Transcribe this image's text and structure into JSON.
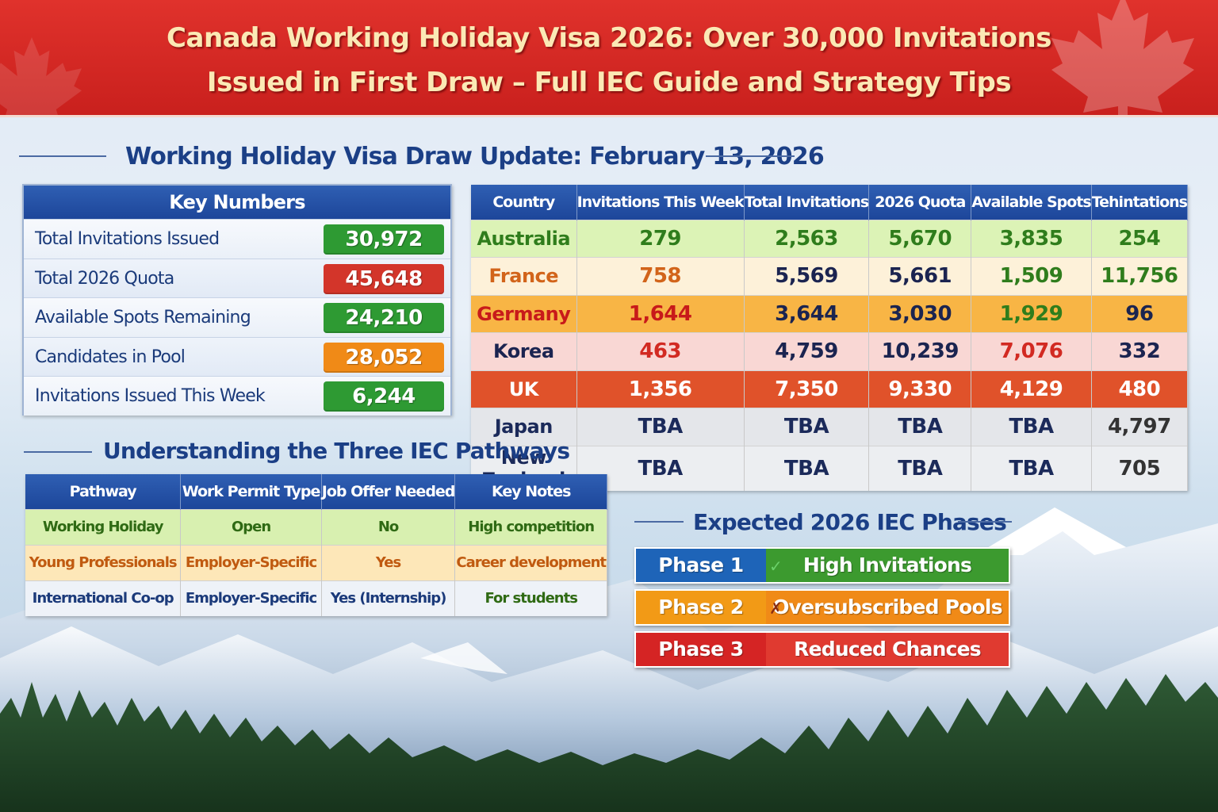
{
  "header": {
    "title_line1": "Canada Working Holiday Visa 2026: Over 30,000 Invitations",
    "title_line2": "Issued in First Draw – Full IEC Guide and Strategy Tips"
  },
  "draw_update": {
    "heading": "Working Holiday Visa Draw Update: February 13, 2026"
  },
  "key_numbers": {
    "heading": "Key Numbers",
    "items": [
      {
        "label": "Total Invitations Issued",
        "value": "30,972",
        "color": "#2e9a33"
      },
      {
        "label": "Total 2026 Quota",
        "value": "45,648",
        "color": "#d3352a"
      },
      {
        "label": "Available Spots Remaining",
        "value": "24,210",
        "color": "#2e9a33"
      },
      {
        "label": "Candidates in Pool",
        "value": "28,052",
        "color": "#f08a17"
      },
      {
        "label": "Invitations Issued This Week",
        "value": "6,244",
        "color": "#2e9a33"
      }
    ]
  },
  "country_table": {
    "headers": [
      "Country",
      "Invitations This Week",
      "Total Invitations",
      "2026 Quota",
      "Available Spots",
      "Tehintations"
    ],
    "rows": [
      {
        "cells": [
          "Australia",
          "279",
          "2,563",
          "5,670",
          "3,835",
          "254"
        ],
        "bg": "#dcf3b6",
        "colors": [
          "#2f7d1c",
          "#2f7d1c",
          "#2f7d1c",
          "#2f7d1c",
          "#2f7d1c",
          "#2f7d1c"
        ]
      },
      {
        "cells": [
          "France",
          "758",
          "5,569",
          "5,661",
          "1,509",
          "11,756"
        ],
        "bg": "#fdf1d9",
        "colors": [
          "#d2641a",
          "#d2641a",
          "#1b2450",
          "#1b2450",
          "#2f7d1c",
          "#2f7d1c"
        ]
      },
      {
        "cells": [
          "Germany",
          "1,644",
          "3,644",
          "3,030",
          "1,929",
          "96"
        ],
        "bg": "#f8b545",
        "colors": [
          "#c81a1a",
          "#c81a1a",
          "#1b2450",
          "#1b2450",
          "#2f7d1c",
          "#1b2450"
        ]
      },
      {
        "cells": [
          "Korea",
          "463",
          "4,759",
          "10,239",
          "7,076",
          "332"
        ],
        "bg": "#f9d7d4",
        "colors": [
          "#1b2450",
          "#d22a22",
          "#1b2450",
          "#1b2450",
          "#d22a22",
          "#1b2450"
        ]
      },
      {
        "cells": [
          "UK",
          "1,356",
          "7,350",
          "9,330",
          "4,129",
          "480"
        ],
        "bg": "#e0522a",
        "colors": [
          "#ffffff",
          "#ffffff",
          "#ffffff",
          "#ffffff",
          "#ffffff",
          "#ffffff"
        ]
      },
      {
        "cells": [
          "Japan",
          "TBA",
          "TBA",
          "TBA",
          "TBA",
          "4,797"
        ],
        "bg": "#e4e6ea",
        "colors": [
          "#1b2a5a",
          "#1b2a5a",
          "#1b2a5a",
          "#1b2a5a",
          "#1b2a5a",
          "#333333"
        ]
      },
      {
        "cells": [
          "New Zealand",
          "TBA",
          "TBA",
          "TBA",
          "TBA",
          "705"
        ],
        "bg": "#eceef1",
        "colors": [
          "#1b2a5a",
          "#1b2a5a",
          "#1b2a5a",
          "#1b2a5a",
          "#1b2a5a",
          "#333333"
        ]
      }
    ]
  },
  "pathways": {
    "heading": "Understanding the Three IEC Pathways",
    "headers": [
      "Pathway",
      "Work Permit Type",
      "Job Offer Needed",
      "Key Notes"
    ],
    "rows": [
      {
        "cells": [
          "Working Holiday",
          "Open",
          "No",
          "High competition"
        ],
        "bg": "#d8f0b0",
        "color": "#2f6a14"
      },
      {
        "cells": [
          "Young Professionals",
          "Employer-Specific",
          "Yes",
          "Career development"
        ],
        "bg": "#fde7b8",
        "color": "#c05a10"
      },
      {
        "cells": [
          "International Co-op",
          "Employer-Specific",
          "Yes (Internship)",
          "For students"
        ],
        "bg": "#eef2f8",
        "color": "#1b3a7a",
        "last_color": "#2f6a14"
      }
    ]
  },
  "phases": {
    "heading": "Expected 2026 IEC Phases",
    "items": [
      {
        "label": "Phase 1",
        "text": "High Invitations",
        "left_color": "#1e64b8",
        "right_color": "#3c9a2f",
        "mark": "✓",
        "mark_color": "#6bd16a"
      },
      {
        "label": "Phase 2",
        "text": "Oversubscribed Pools",
        "left_color": "#f29a16",
        "right_color": "#f08a17",
        "mark": "✗",
        "mark_color": "#8a2b10"
      },
      {
        "label": "Phase 3",
        "text": "Reduced Chances",
        "left_color": "#d52424",
        "right_color": "#e03a30",
        "mark": "",
        "mark_color": "#ffffff"
      }
    ]
  }
}
